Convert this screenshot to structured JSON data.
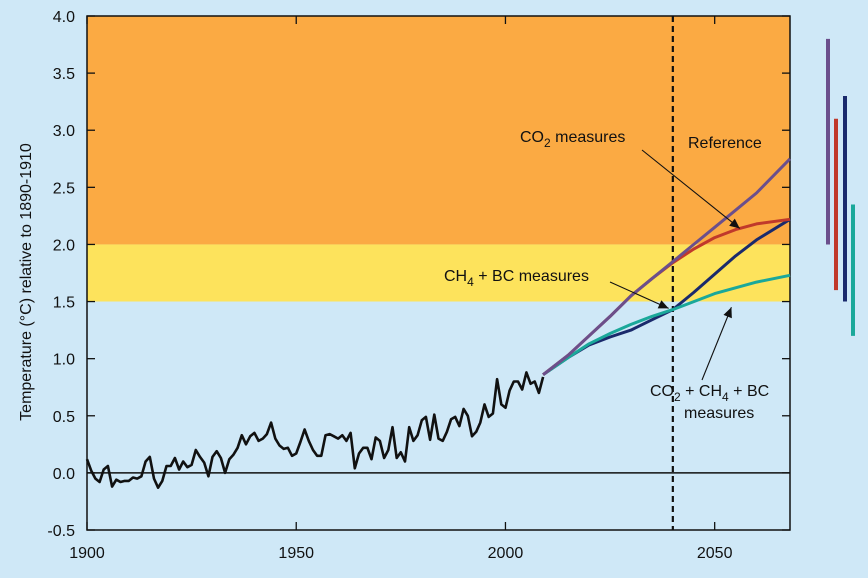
{
  "chart_data": {
    "type": "line",
    "ylabel": "Temperature (°C) relative to 1890-1910",
    "xlabel": "",
    "xlim": [
      1900,
      2068
    ],
    "ylim": [
      -0.5,
      4.0
    ],
    "x_ticks": [
      1900,
      1950,
      2000,
      2050
    ],
    "y_ticks": [
      "-0.5",
      "0.0",
      "0.5",
      "1.0",
      "1.5",
      "2.0",
      "2.5",
      "3.0",
      "3.5",
      "4.0"
    ],
    "grid": false,
    "bands": [
      {
        "from": 2.0,
        "to": 4.0,
        "color": "#fbaa43"
      },
      {
        "from": 1.5,
        "to": 2.0,
        "color": "#fde35c"
      },
      {
        "from": -0.5,
        "to": 1.5,
        "color": "#cfe8f7"
      }
    ],
    "vline": {
      "x": 2040,
      "style": "dashed"
    },
    "observed": {
      "color": "#111111",
      "x": [
        1900,
        1901,
        1902,
        1903,
        1904,
        1905,
        1906,
        1907,
        1908,
        1909,
        1910,
        1911,
        1912,
        1913,
        1914,
        1915,
        1916,
        1917,
        1918,
        1919,
        1920,
        1921,
        1922,
        1923,
        1924,
        1925,
        1926,
        1927,
        1928,
        1929,
        1930,
        1931,
        1932,
        1933,
        1934,
        1935,
        1936,
        1937,
        1938,
        1939,
        1940,
        1941,
        1942,
        1943,
        1944,
        1945,
        1946,
        1947,
        1948,
        1949,
        1950,
        1951,
        1952,
        1953,
        1954,
        1955,
        1956,
        1957,
        1958,
        1959,
        1960,
        1961,
        1962,
        1963,
        1964,
        1965,
        1966,
        1967,
        1968,
        1969,
        1970,
        1971,
        1972,
        1973,
        1974,
        1975,
        1976,
        1977,
        1978,
        1979,
        1980,
        1981,
        1982,
        1983,
        1984,
        1985,
        1986,
        1987,
        1988,
        1989,
        1990,
        1991,
        1992,
        1993,
        1994,
        1995,
        1996,
        1997,
        1998,
        1999,
        2000,
        2001,
        2002,
        2003,
        2004,
        2005,
        2006,
        2007,
        2008,
        2009
      ],
      "y": [
        0.12,
        0.02,
        -0.05,
        -0.08,
        0.03,
        0.06,
        -0.12,
        -0.06,
        -0.08,
        -0.07,
        -0.07,
        -0.04,
        -0.05,
        -0.03,
        0.1,
        0.14,
        -0.05,
        -0.13,
        -0.07,
        0.06,
        0.06,
        0.13,
        0.03,
        0.1,
        0.05,
        0.07,
        0.2,
        0.14,
        0.09,
        -0.03,
        0.14,
        0.19,
        0.13,
        0.0,
        0.12,
        0.16,
        0.22,
        0.33,
        0.25,
        0.32,
        0.35,
        0.28,
        0.3,
        0.34,
        0.44,
        0.3,
        0.24,
        0.21,
        0.22,
        0.15,
        0.17,
        0.27,
        0.38,
        0.28,
        0.2,
        0.15,
        0.15,
        0.33,
        0.34,
        0.32,
        0.3,
        0.33,
        0.28,
        0.35,
        0.04,
        0.17,
        0.22,
        0.22,
        0.12,
        0.31,
        0.28,
        0.13,
        0.2,
        0.4,
        0.13,
        0.18,
        0.1,
        0.4,
        0.28,
        0.33,
        0.46,
        0.49,
        0.29,
        0.51,
        0.3,
        0.28,
        0.36,
        0.47,
        0.49,
        0.41,
        0.56,
        0.5,
        0.32,
        0.36,
        0.44,
        0.6,
        0.49,
        0.52,
        0.82,
        0.6,
        0.57,
        0.72,
        0.8,
        0.8,
        0.73,
        0.88,
        0.78,
        0.8,
        0.7,
        0.84
      ]
    },
    "series": [
      {
        "name": "Reference",
        "color": "#6b4f8c",
        "x": [
          2009,
          2015,
          2020,
          2025,
          2030,
          2035,
          2040,
          2045,
          2050,
          2055,
          2060,
          2068
        ],
        "y": [
          0.86,
          1.03,
          1.2,
          1.37,
          1.55,
          1.7,
          1.85,
          2.0,
          2.15,
          2.3,
          2.45,
          2.75
        ]
      },
      {
        "name": "CO2 measures",
        "color": "#c0392b",
        "x": [
          2009,
          2015,
          2020,
          2025,
          2030,
          2035,
          2040,
          2045,
          2050,
          2055,
          2060,
          2068
        ],
        "y": [
          0.86,
          1.03,
          1.2,
          1.37,
          1.55,
          1.7,
          1.84,
          1.96,
          2.06,
          2.13,
          2.18,
          2.22
        ]
      },
      {
        "name": "CH4 + BC measures",
        "color": "#1aa89a",
        "x": [
          2009,
          2015,
          2020,
          2025,
          2030,
          2035,
          2040,
          2045,
          2050,
          2055,
          2060,
          2068
        ],
        "y": [
          0.86,
          1.01,
          1.13,
          1.22,
          1.3,
          1.37,
          1.43,
          1.5,
          1.57,
          1.62,
          1.67,
          1.73
        ]
      },
      {
        "name": "CO2 + CH4 + BC measures",
        "color": "#1a2a6c",
        "x": [
          2009,
          2015,
          2020,
          2025,
          2030,
          2035,
          2040,
          2045,
          2050,
          2055,
          2060,
          2068
        ],
        "y": [
          0.86,
          1.01,
          1.12,
          1.19,
          1.25,
          1.34,
          1.43,
          1.58,
          1.74,
          1.9,
          2.04,
          2.22
        ]
      }
    ],
    "annotations": [
      {
        "label": "CO",
        "sub": "2",
        "rest": " measures"
      },
      {
        "label": "Reference",
        "sub": "",
        "rest": ""
      },
      {
        "label": "CH",
        "sub": "4",
        "rest": " + BC measures"
      },
      {
        "label": "CO",
        "sub": "2",
        "rest": " + CH",
        "sub2": "4",
        "rest2": " + BC"
      },
      {
        "label": "measures",
        "sub": "",
        "rest": ""
      }
    ],
    "range_bars": [
      {
        "series": "Reference",
        "color": "#6b4f8c",
        "from": 2.0,
        "to": 3.8
      },
      {
        "series": "CO2 measures",
        "color": "#c0392b",
        "from": 1.6,
        "to": 3.1
      },
      {
        "series": "CO2 + CH4 + BC measures",
        "color": "#1a2a6c",
        "from": 1.5,
        "to": 3.3
      },
      {
        "series": "CH4 + BC measures",
        "color": "#1aa89a",
        "from": 1.2,
        "to": 2.35
      }
    ]
  }
}
